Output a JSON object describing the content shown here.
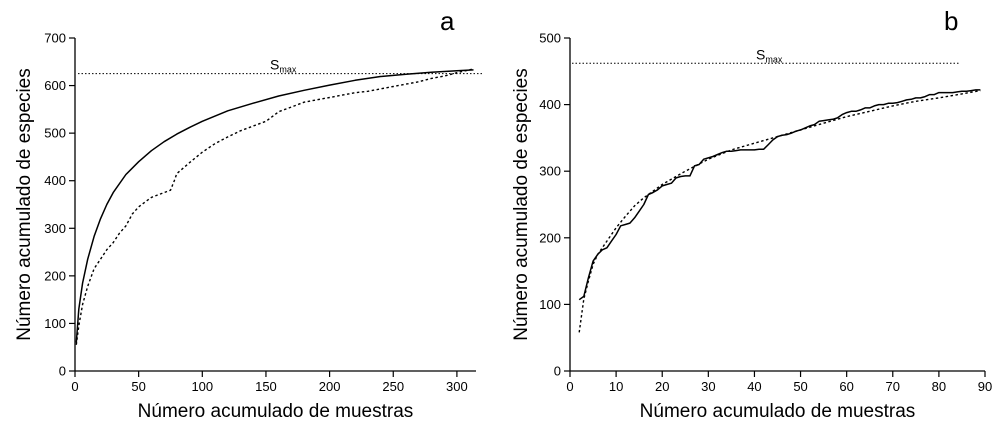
{
  "chart_data": [
    {
      "type": "line",
      "panel_label": "a",
      "xlabel": "Número acumulado de muestras",
      "ylabel": "Número acumulado de especies",
      "xlim": [
        0,
        315
      ],
      "ylim": [
        0,
        700
      ],
      "xticks": [
        0,
        50,
        100,
        150,
        200,
        250,
        300
      ],
      "yticks": [
        0,
        100,
        200,
        300,
        400,
        500,
        600,
        700
      ],
      "reference_line": {
        "label": "S",
        "label_sub": "max",
        "y": 625,
        "style": "dotted"
      },
      "series": [
        {
          "style": "solid",
          "x": [
            1,
            3,
            6,
            10,
            15,
            20,
            25,
            30,
            40,
            50,
            60,
            70,
            80,
            90,
            100,
            120,
            140,
            160,
            180,
            200,
            220,
            240,
            260,
            280,
            300,
            313
          ],
          "y": [
            60,
            130,
            185,
            235,
            283,
            320,
            350,
            375,
            413,
            440,
            463,
            482,
            498,
            512,
            525,
            547,
            563,
            578,
            590,
            601,
            611,
            619,
            624,
            628,
            631,
            633
          ]
        },
        {
          "style": "dotted",
          "x": [
            1,
            3,
            6,
            10,
            15,
            20,
            25,
            30,
            35,
            40,
            45,
            50,
            55,
            60,
            65,
            70,
            75,
            78,
            80,
            90,
            100,
            110,
            120,
            130,
            140,
            150,
            160,
            170,
            180,
            190,
            200,
            210,
            220,
            230,
            240,
            250,
            260,
            270,
            280,
            290,
            300,
            313
          ],
          "y": [
            55,
            95,
            140,
            178,
            215,
            235,
            255,
            270,
            290,
            305,
            330,
            345,
            355,
            365,
            370,
            375,
            380,
            400,
            415,
            438,
            460,
            478,
            492,
            505,
            515,
            525,
            545,
            555,
            565,
            570,
            575,
            580,
            585,
            588,
            593,
            598,
            603,
            608,
            615,
            620,
            627,
            635
          ]
        }
      ]
    },
    {
      "type": "line",
      "panel_label": "b",
      "xlabel": "Número acumulado de muestras",
      "ylabel": "Número acumulado de especies",
      "xlim": [
        0,
        90
      ],
      "ylim": [
        0,
        500
      ],
      "xticks": [
        0,
        10,
        20,
        30,
        40,
        50,
        60,
        70,
        80,
        90
      ],
      "yticks": [
        0,
        100,
        200,
        300,
        400,
        500
      ],
      "reference_line": {
        "label": "S",
        "label_sub": "max",
        "y": 462,
        "style": "dotted"
      },
      "series": [
        {
          "style": "solid",
          "x": [
            2,
            3,
            4,
            5,
            6,
            7,
            8,
            9,
            10,
            11,
            12,
            13,
            14,
            15,
            16,
            17,
            18,
            19,
            20,
            21,
            22,
            23,
            24,
            25,
            26,
            27,
            28,
            29,
            30,
            31,
            32,
            33,
            34,
            35,
            36,
            37,
            38,
            39,
            40,
            41,
            42,
            43,
            44,
            45,
            46,
            47,
            48,
            49,
            50,
            51,
            52,
            53,
            54,
            55,
            56,
            57,
            58,
            59,
            60,
            61,
            62,
            63,
            64,
            65,
            66,
            67,
            68,
            69,
            70,
            71,
            72,
            73,
            74,
            75,
            76,
            77,
            78,
            79,
            80,
            81,
            82,
            83,
            84,
            85,
            86,
            87,
            88,
            89
          ],
          "y": [
            107,
            112,
            140,
            165,
            175,
            182,
            185,
            195,
            205,
            218,
            220,
            222,
            230,
            240,
            250,
            265,
            268,
            272,
            278,
            280,
            282,
            290,
            292,
            293,
            293,
            308,
            310,
            318,
            320,
            322,
            325,
            328,
            330,
            330,
            331,
            332,
            332,
            332,
            332,
            333,
            333,
            340,
            347,
            352,
            354,
            355,
            357,
            360,
            362,
            365,
            368,
            370,
            375,
            376,
            377,
            378,
            380,
            385,
            388,
            390,
            390,
            392,
            395,
            395,
            398,
            400,
            400,
            402,
            402,
            403,
            405,
            407,
            408,
            410,
            410,
            412,
            415,
            415,
            418,
            418,
            418,
            418,
            419,
            420,
            420,
            421,
            422,
            422
          ]
        },
        {
          "style": "dotted",
          "x": [
            2,
            3,
            4,
            5,
            6,
            7,
            8,
            10,
            12,
            14,
            16,
            18,
            20,
            25,
            30,
            35,
            40,
            45,
            50,
            55,
            60,
            65,
            70,
            75,
            80,
            85,
            89
          ],
          "y": [
            58,
            108,
            135,
            160,
            175,
            185,
            195,
            215,
            232,
            248,
            260,
            270,
            280,
            300,
            318,
            332,
            342,
            352,
            362,
            372,
            382,
            390,
            398,
            405,
            410,
            416,
            421
          ]
        }
      ]
    }
  ]
}
